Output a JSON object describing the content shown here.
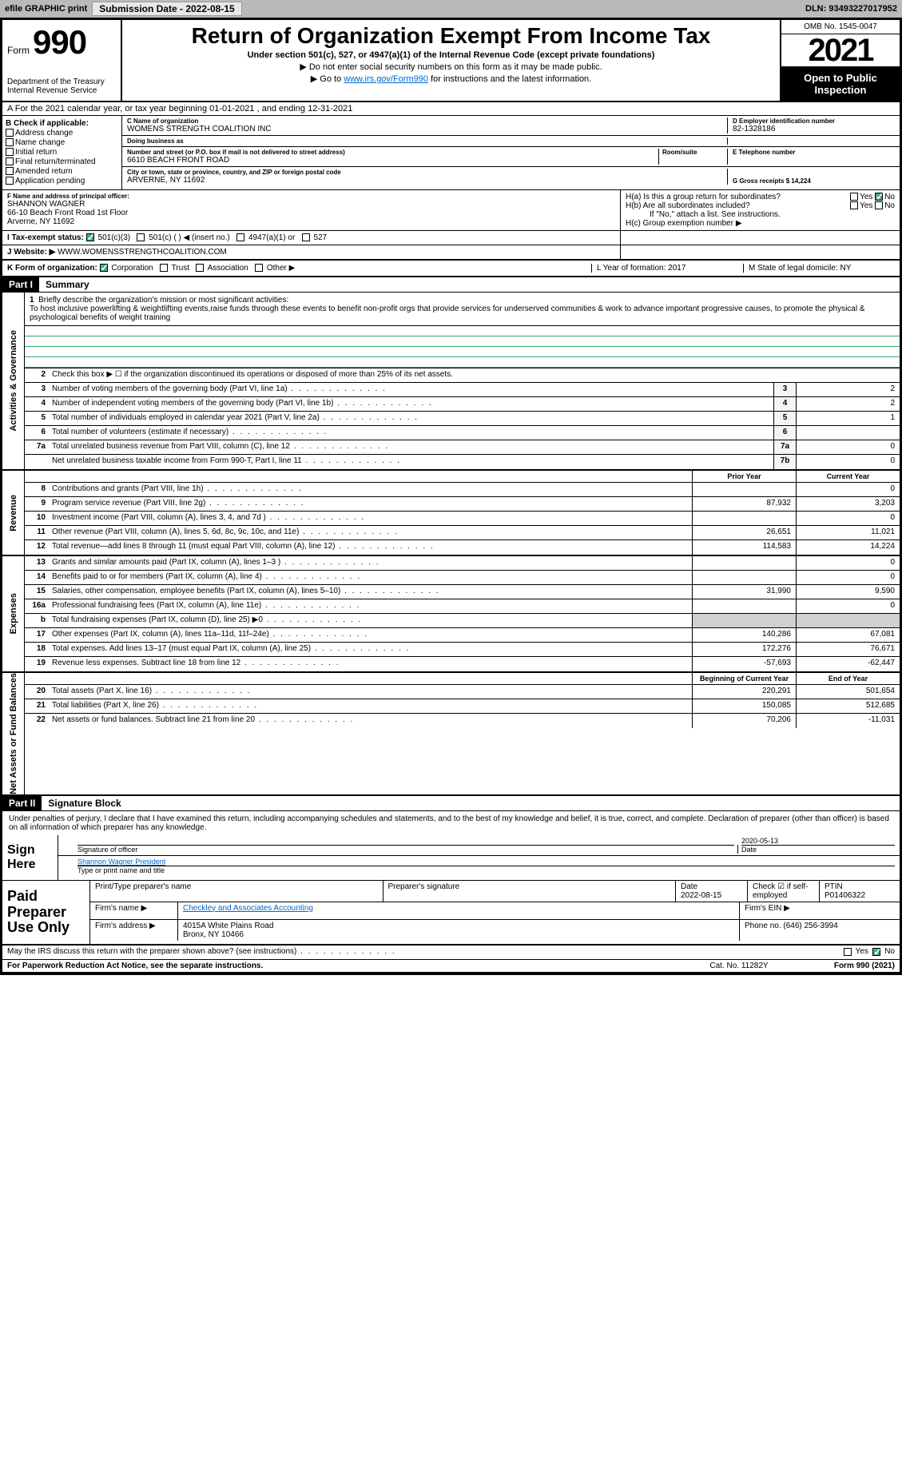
{
  "topbar": {
    "efile": "efile GRAPHIC print",
    "submission_label": "Submission Date - 2022-08-15",
    "dln": "DLN: 93493227017952"
  },
  "header": {
    "form_word": "Form",
    "form_number": "990",
    "dept": "Department of the Treasury\nInternal Revenue Service",
    "title": "Return of Organization Exempt From Income Tax",
    "subtitle": "Under section 501(c), 527, or 4947(a)(1) of the Internal Revenue Code (except private foundations)",
    "note1": "▶ Do not enter social security numbers on this form as it may be made public.",
    "note2_pre": "▶ Go to ",
    "note2_link": "www.irs.gov/Form990",
    "note2_post": " for instructions and the latest information.",
    "omb": "OMB No. 1545-0047",
    "year": "2021",
    "open": "Open to Public Inspection"
  },
  "row_a": "A For the 2021 calendar year, or tax year beginning 01-01-2021   , and ending 12-31-2021",
  "box_b": {
    "label": "B Check if applicable:",
    "items": [
      "Address change",
      "Name change",
      "Initial return",
      "Final return/terminated",
      "Amended return",
      "Application pending"
    ]
  },
  "box_c": {
    "name_label": "C Name of organization",
    "name": "WOMENS STRENGTH COALITION INC",
    "dba_label": "Doing business as",
    "dba": "",
    "street_label": "Number and street (or P.O. box if mail is not delivered to street address)",
    "street": "6610 BEACH FRONT ROAD",
    "room_label": "Room/suite",
    "city_label": "City or town, state or province, country, and ZIP or foreign postal code",
    "city": "ARVERNE, NY  11692"
  },
  "box_d": {
    "label": "D Employer identification number",
    "val": "82-1328186"
  },
  "box_e": {
    "label": "E Telephone number",
    "val": ""
  },
  "box_g": {
    "label": "G Gross receipts $ 14,224"
  },
  "box_f": {
    "label": "F Name and address of principal officer:",
    "name": "SHANNON WAGNER",
    "addr1": "66-10 Beach Front Road 1st Floor",
    "addr2": "Arverne, NY  11692"
  },
  "box_h": {
    "a": "H(a)  Is this a group return for subordinates?",
    "b": "H(b)  Are all subordinates included?",
    "b_note": "If \"No,\" attach a list. See instructions.",
    "c": "H(c)  Group exemption number ▶",
    "yes": "Yes",
    "no": "No"
  },
  "row_i": {
    "label": "I  Tax-exempt status:",
    "opts": [
      "501(c)(3)",
      "501(c) (  ) ◀ (insert no.)",
      "4947(a)(1) or",
      "527"
    ]
  },
  "row_j": {
    "label": "J  Website: ▶",
    "val": "WWW.WOMENSSTRENGTHCOALITION.COM"
  },
  "row_k": {
    "label": "K Form of organization:",
    "opts": [
      "Corporation",
      "Trust",
      "Association",
      "Other ▶"
    ],
    "l": "L Year of formation: 2017",
    "m": "M State of legal domicile: NY"
  },
  "part1": {
    "hdr": "Part I",
    "title": "Summary"
  },
  "mission": {
    "num": "1",
    "label": "Briefly describe the organization's mission or most significant activities:",
    "text": "To host inclusive powerlifting & weightlifting events,raise funds through these events to benefit non-profit orgs that provide services for underserved communities & work to advance important progressive causes, to promote the physical & psychological benefits of weight training"
  },
  "governance": {
    "side": "Activities & Governance",
    "lines": [
      {
        "n": "2",
        "t": "Check this box ▶ ☐  if the organization discontinued its operations or disposed of more than 25% of its net assets."
      },
      {
        "n": "3",
        "t": "Number of voting members of the governing body (Part VI, line 1a)",
        "box": "3",
        "v": "2"
      },
      {
        "n": "4",
        "t": "Number of independent voting members of the governing body (Part VI, line 1b)",
        "box": "4",
        "v": "2"
      },
      {
        "n": "5",
        "t": "Total number of individuals employed in calendar year 2021 (Part V, line 2a)",
        "box": "5",
        "v": "1"
      },
      {
        "n": "6",
        "t": "Total number of volunteers (estimate if necessary)",
        "box": "6",
        "v": ""
      },
      {
        "n": "7a",
        "t": "Total unrelated business revenue from Part VIII, column (C), line 12",
        "box": "7a",
        "v": "0"
      },
      {
        "n": "",
        "t": "Net unrelated business taxable income from Form 990-T, Part I, line 11",
        "box": "7b",
        "v": "0"
      }
    ]
  },
  "revenue": {
    "side": "Revenue",
    "hdr_prior": "Prior Year",
    "hdr_curr": "Current Year",
    "lines": [
      {
        "n": "8",
        "t": "Contributions and grants (Part VIII, line 1h)",
        "p": "",
        "c": "0"
      },
      {
        "n": "9",
        "t": "Program service revenue (Part VIII, line 2g)",
        "p": "87,932",
        "c": "3,203"
      },
      {
        "n": "10",
        "t": "Investment income (Part VIII, column (A), lines 3, 4, and 7d )",
        "p": "",
        "c": "0"
      },
      {
        "n": "11",
        "t": "Other revenue (Part VIII, column (A), lines 5, 6d, 8c, 9c, 10c, and 11e)",
        "p": "26,651",
        "c": "11,021"
      },
      {
        "n": "12",
        "t": "Total revenue—add lines 8 through 11 (must equal Part VIII, column (A), line 12)",
        "p": "114,583",
        "c": "14,224"
      }
    ]
  },
  "expenses": {
    "side": "Expenses",
    "lines": [
      {
        "n": "13",
        "t": "Grants and similar amounts paid (Part IX, column (A), lines 1–3 )",
        "p": "",
        "c": "0"
      },
      {
        "n": "14",
        "t": "Benefits paid to or for members (Part IX, column (A), line 4)",
        "p": "",
        "c": "0"
      },
      {
        "n": "15",
        "t": "Salaries, other compensation, employee benefits (Part IX, column (A), lines 5–10)",
        "p": "31,990",
        "c": "9,590"
      },
      {
        "n": "16a",
        "t": "Professional fundraising fees (Part IX, column (A), line 11e)",
        "p": "",
        "c": "0"
      },
      {
        "n": "b",
        "t": "Total fundraising expenses (Part IX, column (D), line 25) ▶0",
        "p": "",
        "c": "",
        "grey": true
      },
      {
        "n": "17",
        "t": "Other expenses (Part IX, column (A), lines 11a–11d, 11f–24e)",
        "p": "140,286",
        "c": "67,081"
      },
      {
        "n": "18",
        "t": "Total expenses. Add lines 13–17 (must equal Part IX, column (A), line 25)",
        "p": "172,276",
        "c": "76,671"
      },
      {
        "n": "19",
        "t": "Revenue less expenses. Subtract line 18 from line 12",
        "p": "-57,693",
        "c": "-62,447"
      }
    ]
  },
  "netassets": {
    "side": "Net Assets or Fund Balances",
    "hdr_prior": "Beginning of Current Year",
    "hdr_curr": "End of Year",
    "lines": [
      {
        "n": "20",
        "t": "Total assets (Part X, line 16)",
        "p": "220,291",
        "c": "501,654"
      },
      {
        "n": "21",
        "t": "Total liabilities (Part X, line 26)",
        "p": "150,085",
        "c": "512,685"
      },
      {
        "n": "22",
        "t": "Net assets or fund balances. Subtract line 21 from line 20",
        "p": "70,206",
        "c": "-11,031"
      }
    ]
  },
  "part2": {
    "hdr": "Part II",
    "title": "Signature Block"
  },
  "sig": {
    "perjury": "Under penalties of perjury, I declare that I have examined this return, including accompanying schedules and statements, and to the best of my knowledge and belief, it is true, correct, and complete. Declaration of preparer (other than officer) is based on all information of which preparer has any knowledge.",
    "sign_here": "Sign Here",
    "sig_officer": "Signature of officer",
    "date": "Date",
    "date_val": "2020-05-13",
    "name_title": "Shannon Wagner President",
    "type_name": "Type or print name and title"
  },
  "paid": {
    "label": "Paid Preparer Use Only",
    "print_name": "Print/Type preparer's name",
    "prep_sig": "Preparer's signature",
    "date": "Date",
    "date_val": "2022-08-15",
    "check_if": "Check ☑ if self-employed",
    "ptin": "PTIN",
    "ptin_val": "P01406322",
    "firm_name_l": "Firm's name    ▶",
    "firm_name": "Checkley and Associates Accounting",
    "firm_ein_l": "Firm's EIN ▶",
    "firm_addr_l": "Firm's address ▶",
    "firm_addr": "4015A White Plains Road\nBronx, NY  10466",
    "phone_l": "Phone no. (646) 256-3994"
  },
  "discuss": "May the IRS discuss this return with the preparer shown above? (see instructions)",
  "footer": {
    "left": "For Paperwork Reduction Act Notice, see the separate instructions.",
    "mid": "Cat. No. 11282Y",
    "right": "Form 990 (2021)"
  }
}
